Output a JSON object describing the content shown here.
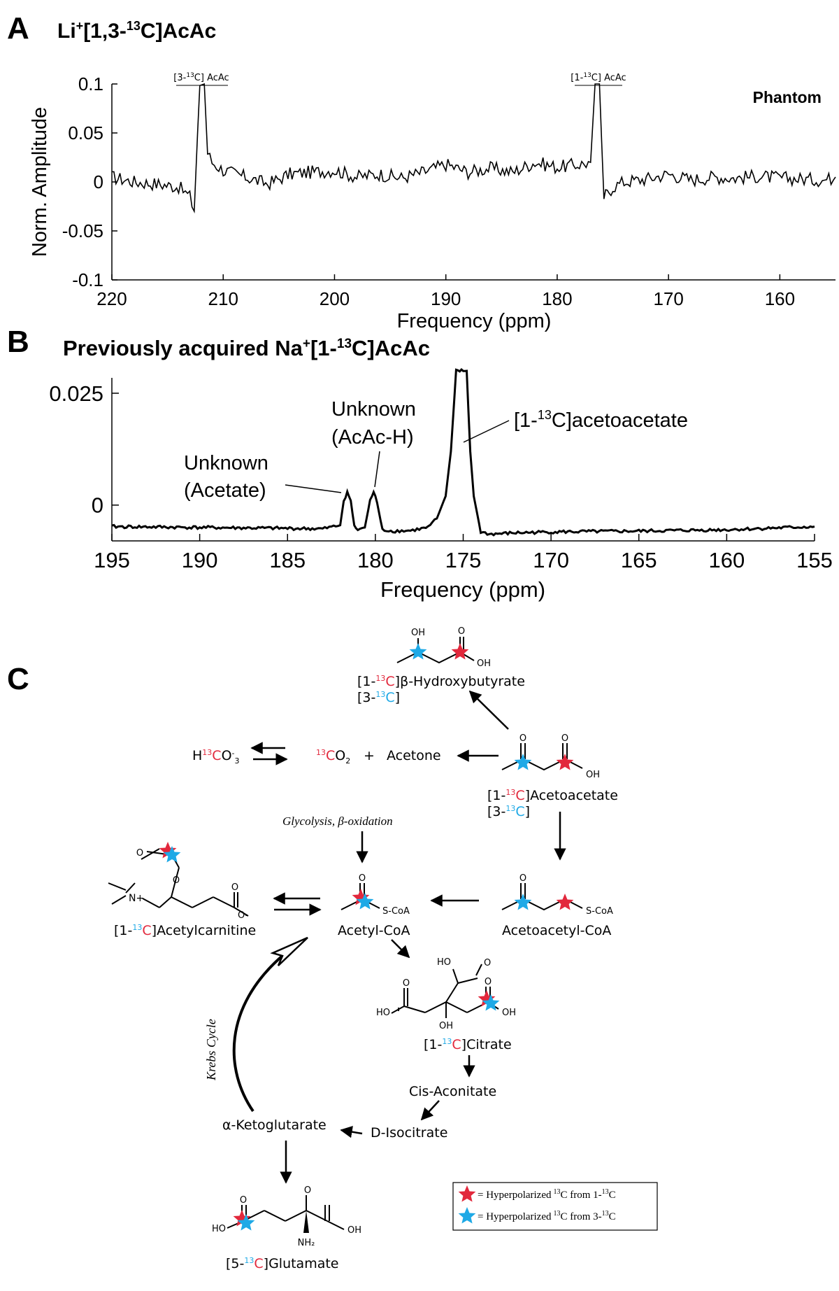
{
  "panel_a": {
    "letter": "A",
    "title_pre": "Li",
    "title_sup1": "+",
    "title_mid": "[1,3-",
    "title_sup2": "13",
    "title_post": "C]AcAc",
    "legend_label": "Phantom",
    "peak_label_left_pre": "[3-",
    "peak_label_left_sup": "13",
    "peak_label_left_post": "C] AcAc",
    "peak_label_right_pre": "[1-",
    "peak_label_right_sup": "13",
    "peak_label_right_post": "C] AcAc"
  },
  "panel_b": {
    "letter": "B",
    "title_pre": "Previously acquired Na",
    "title_sup1": "+",
    "title_mid": "[1-",
    "title_sup2": "13",
    "title_post": "C]AcAc",
    "ann_acetate_1": "Unknown",
    "ann_acetate_2": "(Acetate)",
    "ann_acach_1": "Unknown",
    "ann_acach_2": "(AcAc-H)",
    "ann_main_pre": "[1-",
    "ann_main_sup": "13",
    "ann_main_post": "C]acetoacetate"
  },
  "chart_data": [
    {
      "type": "line",
      "panel": "A",
      "xlabel": "Frequency (ppm)",
      "ylabel": "Norm. Amplitude",
      "xlim": [
        220,
        155
      ],
      "ylim": [
        -0.1,
        0.1
      ],
      "xticks": [
        "220",
        "210",
        "200",
        "190",
        "180",
        "170",
        "160"
      ],
      "yticks": [
        "0.1",
        "0.05",
        "0",
        "-0.05",
        "-0.1"
      ],
      "x_reversed": true,
      "series": [
        {
          "x": [
            220,
            218,
            216,
            214,
            213,
            212.6,
            212.3,
            212.1,
            211.9,
            211.7,
            211.4,
            211,
            210,
            208,
            206,
            204,
            202,
            200,
            198,
            196,
            194,
            192,
            190,
            188,
            186,
            184,
            182,
            180,
            178,
            177,
            176.8,
            176.6,
            176.4,
            176.2,
            176,
            175.8,
            175.5,
            175,
            174,
            172,
            170,
            168,
            166,
            164,
            162,
            160,
            158,
            156,
            155
          ],
          "y": [
            0.005,
            0.0,
            -0.002,
            -0.005,
            -0.015,
            -0.03,
            0.05,
            0.1,
            0.1,
            0.1,
            0.03,
            0.02,
            0.012,
            0.005,
            -0.002,
            0.008,
            0.01,
            0.012,
            0.005,
            0.008,
            0.004,
            0.01,
            0.018,
            0.01,
            0.014,
            0.01,
            0.02,
            0.015,
            0.018,
            0.02,
            0.06,
            0.1,
            0.1,
            0.1,
            0.04,
            -0.015,
            -0.012,
            -0.005,
            0.0,
            0.003,
            0.008,
            0.002,
            0.005,
            0.004,
            0.006,
            0.004,
            0.003,
            0.002,
            0.005
          ]
        }
      ]
    },
    {
      "type": "line",
      "panel": "B",
      "xlabel": "Frequency (ppm)",
      "ylabel": "",
      "xlim": [
        195,
        155
      ],
      "ylim": [
        -0.008,
        0.03
      ],
      "xticks": [
        "195",
        "190",
        "185",
        "180",
        "175",
        "170",
        "165",
        "160",
        "155"
      ],
      "yticks": [
        "0.025",
        "0"
      ],
      "x_reversed": true,
      "series": [
        {
          "x": [
            195,
            190,
            185,
            183,
            182,
            181.8,
            181.6,
            181.4,
            181.2,
            181,
            180.6,
            180.3,
            180.1,
            179.9,
            179.6,
            179,
            178,
            177,
            176.5,
            176,
            175.7,
            175.4,
            175.2,
            175,
            174.8,
            174.6,
            174.4,
            174.2,
            174,
            173.5,
            172,
            170,
            165,
            160,
            155
          ],
          "y": [
            -0.0048,
            -0.005,
            -0.0052,
            -0.0053,
            -0.0045,
            0.001,
            0.003,
            0.001,
            -0.0048,
            -0.0055,
            -0.005,
            0.001,
            0.003,
            0.0005,
            -0.0055,
            -0.0058,
            -0.0057,
            -0.005,
            -0.003,
            0.002,
            0.012,
            0.03,
            0.03,
            0.03,
            0.03,
            0.012,
            0.002,
            -0.002,
            -0.006,
            -0.0065,
            -0.0062,
            -0.006,
            -0.0058,
            -0.0055,
            -0.0048
          ]
        }
      ]
    }
  ],
  "panel_c": {
    "letter": "C",
    "bhb_name": "β-Hydroxybutyrate",
    "acac_name": "Acetoacetate",
    "acacoa_name": "Acetoacetyl-CoA",
    "acetylcoa_name": "Acetyl-CoA",
    "acetylcarnitine_name": "Acetylcarnitine",
    "citrate_name": "Citrate",
    "glutamate_name": "Glutamate",
    "cis_aconitate": "Cis-Aconitate",
    "isocitrate": "D-Isocitrate",
    "akg": "α-Ketoglutarate",
    "acetone": "Acetone",
    "plus": "+",
    "glycolysis": "Glycolysis, β-oxidation",
    "krebs": "Krebs Cycle",
    "scoa": "S-CoA",
    "oh": "OH",
    "o": "O",
    "ho": "HO",
    "nh2": "NH₂",
    "o_minus": "O-",
    "nplus": "N+",
    "label_1": "[1-",
    "label_3": "[3-",
    "label_5": "[5-",
    "c13_sup": "13",
    "c13_c": "C",
    "bracket_close": "]",
    "h": "H",
    "o3": "O",
    "sub3": "3",
    "sub2": "2",
    "legend_red_pre": "= Hyperpolarized",
    "legend_red_post": "C from 1-",
    "legend_red_end": "C",
    "legend_blue_pre": "= Hyperpolarized",
    "legend_blue_post": "C from 3-",
    "legend_blue_end": "C"
  },
  "colors": {
    "red_label": "#e2283c",
    "blue_label": "#1ea9e6"
  }
}
